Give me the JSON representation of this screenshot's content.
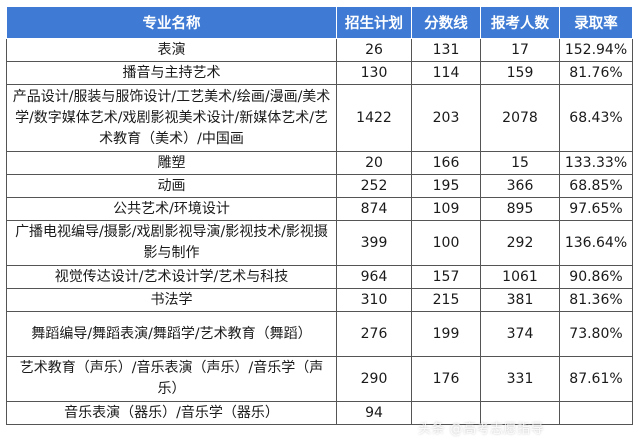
{
  "headers": [
    "专业名称",
    "招生计划",
    "分数线",
    "报考人数",
    "录取率"
  ],
  "rows": [
    {
      "name": "表演",
      "plan": "26",
      "score": "131",
      "applicants": "17",
      "rate": "152.94%"
    },
    {
      "name": "播音与主持艺术",
      "plan": "130",
      "score": "114",
      "applicants": "159",
      "rate": "81.76%"
    },
    {
      "name": "产品设计/服装与服饰设计/工艺美术/绘画/漫画/美术学/数字媒体艺术/戏剧影视美术设计/新媒体艺术/艺术教育（美术）/中国画",
      "plan": "1422",
      "score": "203",
      "applicants": "2078",
      "rate": "68.43%"
    },
    {
      "name": "雕塑",
      "plan": "20",
      "score": "166",
      "applicants": "15",
      "rate": "133.33%"
    },
    {
      "name": "动画",
      "plan": "252",
      "score": "195",
      "applicants": "366",
      "rate": "68.85%"
    },
    {
      "name": "公共艺术/环境设计",
      "plan": "874",
      "score": "109",
      "applicants": "895",
      "rate": "97.65%"
    },
    {
      "name": "广播电视编导/摄影/戏剧影视导演/影视技术/影视摄影与制作",
      "plan": "399",
      "score": "100",
      "applicants": "292",
      "rate": "136.64%"
    },
    {
      "name": "视觉传达设计/艺术设计学/艺术与科技",
      "plan": "964",
      "score": "157",
      "applicants": "1061",
      "rate": "90.86%"
    },
    {
      "name": "书法学",
      "plan": "310",
      "score": "215",
      "applicants": "381",
      "rate": "81.36%"
    },
    {
      "name": "舞蹈编导/舞蹈表演/舞蹈学/艺术教育（舞蹈）",
      "plan": "276",
      "score": "199",
      "applicants": "374",
      "rate": "73.80%"
    },
    {
      "name": "艺术教育（声乐）/音乐表演（声乐）/音乐学（声乐）",
      "plan": "290",
      "score": "176",
      "applicants": "331",
      "rate": "87.61%"
    },
    {
      "name": "音乐表演（器乐）/音乐学（器乐）",
      "plan": "94",
      "score": "",
      "applicants": "",
      "rate": ""
    }
  ],
  "watermark": "头条 @高考志愿指导"
}
